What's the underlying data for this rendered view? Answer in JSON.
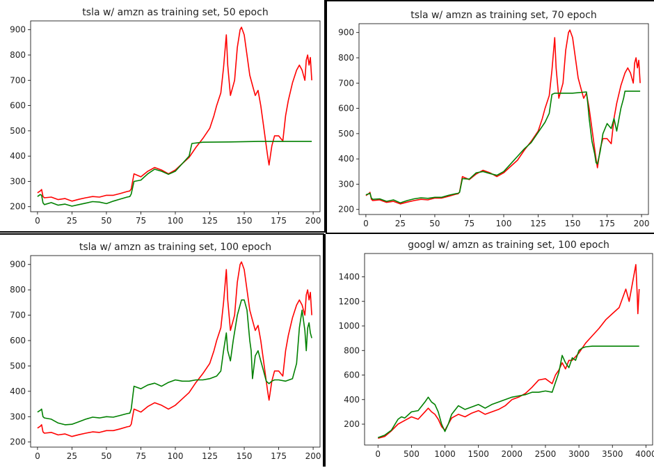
{
  "figure": {
    "panels_count": 4
  },
  "chart_data": [
    {
      "type": "line",
      "title": "tsla w/ amzn as training set, 50 epoch",
      "xlim": [
        -5,
        205
      ],
      "ylim": [
        180,
        935
      ],
      "xticks": [
        0,
        25,
        50,
        75,
        100,
        125,
        150,
        175,
        200
      ],
      "yticks": [
        200,
        300,
        400,
        500,
        600,
        700,
        800,
        900
      ],
      "series": [
        {
          "color": "#ff0000",
          "x": [
            0,
            2,
            3,
            4,
            5,
            10,
            15,
            20,
            25,
            30,
            35,
            40,
            45,
            50,
            55,
            60,
            65,
            67,
            68,
            70,
            75,
            80,
            85,
            90,
            95,
            100,
            105,
            110,
            115,
            120,
            125,
            128,
            130,
            133,
            135,
            137,
            138,
            140,
            143,
            145,
            147,
            148,
            150,
            152,
            154,
            156,
            158,
            160,
            162,
            164,
            166,
            167,
            168,
            170,
            172,
            175,
            178,
            180,
            182,
            185,
            188,
            190,
            192,
            194,
            195,
            196,
            197,
            198,
            199
          ],
          "y": [
            255,
            262,
            268,
            240,
            235,
            238,
            228,
            232,
            222,
            229,
            235,
            240,
            238,
            245,
            245,
            252,
            260,
            262,
            270,
            330,
            318,
            340,
            355,
            345,
            330,
            345,
            370,
            395,
            435,
            470,
            510,
            560,
            600,
            650,
            750,
            880,
            760,
            640,
            700,
            830,
            900,
            910,
            880,
            800,
            720,
            680,
            640,
            660,
            600,
            520,
            440,
            400,
            365,
            440,
            480,
            480,
            460,
            560,
            620,
            690,
            740,
            760,
            740,
            700,
            780,
            800,
            760,
            790,
            700
          ]
        },
        {
          "color": "#008000",
          "x": [
            0,
            2,
            3,
            4,
            5,
            10,
            15,
            20,
            25,
            30,
            35,
            40,
            45,
            50,
            55,
            60,
            65,
            67,
            68,
            70,
            75,
            80,
            85,
            90,
            95,
            100,
            105,
            110,
            112,
            120,
            140,
            160,
            180,
            199
          ],
          "y": [
            240,
            248,
            245,
            215,
            208,
            216,
            206,
            210,
            202,
            208,
            214,
            220,
            218,
            212,
            222,
            230,
            238,
            240,
            250,
            300,
            305,
            330,
            348,
            340,
            328,
            340,
            370,
            400,
            450,
            455,
            456,
            458,
            458,
            458
          ]
        }
      ]
    },
    {
      "type": "line",
      "title": "tsla w/ amzn as training set, 70 epoch",
      "xlim": [
        -5,
        205
      ],
      "ylim": [
        180,
        935
      ],
      "xticks": [
        0,
        25,
        50,
        75,
        100,
        125,
        150,
        175,
        200
      ],
      "yticks": [
        200,
        300,
        400,
        500,
        600,
        700,
        800,
        900
      ],
      "series": [
        {
          "color": "#ff0000",
          "x": [
            0,
            2,
            3,
            4,
            5,
            10,
            15,
            20,
            25,
            30,
            35,
            40,
            45,
            50,
            55,
            60,
            65,
            67,
            68,
            70,
            75,
            80,
            85,
            90,
            95,
            100,
            105,
            110,
            115,
            120,
            125,
            128,
            130,
            133,
            135,
            137,
            138,
            140,
            143,
            145,
            147,
            148,
            150,
            152,
            154,
            156,
            158,
            160,
            162,
            164,
            166,
            167,
            168,
            170,
            172,
            175,
            178,
            180,
            182,
            185,
            188,
            190,
            192,
            194,
            195,
            196,
            197,
            198,
            199
          ],
          "y": [
            255,
            262,
            268,
            240,
            235,
            238,
            228,
            232,
            222,
            229,
            235,
            240,
            238,
            245,
            245,
            252,
            260,
            262,
            270,
            330,
            318,
            340,
            355,
            345,
            330,
            345,
            370,
            395,
            435,
            470,
            510,
            560,
            600,
            650,
            750,
            880,
            760,
            640,
            700,
            830,
            900,
            910,
            880,
            800,
            720,
            680,
            640,
            660,
            600,
            520,
            440,
            400,
            365,
            440,
            480,
            480,
            460,
            560,
            620,
            690,
            740,
            760,
            740,
            700,
            780,
            800,
            760,
            790,
            700
          ]
        },
        {
          "color": "#008000",
          "x": [
            0,
            2,
            3,
            4,
            5,
            10,
            15,
            20,
            25,
            30,
            35,
            40,
            45,
            50,
            55,
            60,
            65,
            67,
            68,
            70,
            75,
            80,
            85,
            90,
            95,
            100,
            105,
            110,
            115,
            120,
            125,
            130,
            133,
            135,
            137,
            140,
            150,
            160,
            161,
            162,
            164,
            166,
            167,
            168,
            170,
            172,
            175,
            178,
            180,
            182,
            185,
            187,
            188,
            199
          ],
          "y": [
            258,
            262,
            264,
            245,
            240,
            242,
            232,
            238,
            226,
            235,
            242,
            246,
            244,
            248,
            248,
            256,
            262,
            264,
            268,
            322,
            320,
            345,
            350,
            342,
            335,
            350,
            380,
            410,
            440,
            465,
            505,
            545,
            580,
            655,
            660,
            660,
            660,
            665,
            620,
            560,
            470,
            420,
            385,
            380,
            430,
            500,
            540,
            520,
            560,
            510,
            600,
            640,
            668,
            668
          ]
        }
      ]
    },
    {
      "type": "line",
      "title": "tsla w/ amzn as training set, 100 epoch",
      "xlim": [
        -5,
        205
      ],
      "ylim": [
        180,
        935
      ],
      "xticks": [
        0,
        25,
        50,
        75,
        100,
        125,
        150,
        175,
        200
      ],
      "yticks": [
        200,
        300,
        400,
        500,
        600,
        700,
        800,
        900
      ],
      "series": [
        {
          "color": "#ff0000",
          "x": [
            0,
            2,
            3,
            4,
            5,
            10,
            15,
            20,
            25,
            30,
            35,
            40,
            45,
            50,
            55,
            60,
            65,
            67,
            68,
            70,
            75,
            80,
            85,
            90,
            95,
            100,
            105,
            110,
            115,
            120,
            125,
            128,
            130,
            133,
            135,
            137,
            138,
            140,
            143,
            145,
            147,
            148,
            150,
            152,
            154,
            156,
            158,
            160,
            162,
            164,
            166,
            167,
            168,
            170,
            172,
            175,
            178,
            180,
            182,
            185,
            188,
            190,
            192,
            194,
            195,
            196,
            197,
            198,
            199
          ],
          "y": [
            255,
            262,
            268,
            240,
            235,
            238,
            228,
            232,
            222,
            229,
            235,
            240,
            238,
            245,
            245,
            252,
            260,
            262,
            270,
            330,
            318,
            340,
            355,
            345,
            330,
            345,
            370,
            395,
            435,
            470,
            510,
            560,
            600,
            650,
            750,
            880,
            760,
            640,
            700,
            830,
            900,
            910,
            880,
            800,
            720,
            680,
            640,
            660,
            600,
            520,
            440,
            400,
            365,
            440,
            480,
            480,
            460,
            560,
            620,
            690,
            740,
            760,
            740,
            700,
            780,
            800,
            760,
            790,
            700
          ]
        },
        {
          "color": "#008000",
          "x": [
            0,
            2,
            3,
            4,
            5,
            10,
            15,
            20,
            25,
            30,
            35,
            40,
            45,
            50,
            55,
            60,
            65,
            67,
            68,
            70,
            75,
            80,
            85,
            90,
            95,
            100,
            105,
            110,
            115,
            120,
            125,
            130,
            133,
            135,
            137,
            138,
            140,
            142,
            145,
            148,
            150,
            152,
            154,
            155,
            156,
            158,
            160,
            162,
            164,
            166,
            168,
            170,
            172,
            175,
            180,
            185,
            188,
            190,
            192,
            194,
            195,
            196,
            197,
            198,
            199
          ],
          "y": [
            318,
            325,
            330,
            300,
            295,
            290,
            275,
            268,
            270,
            280,
            290,
            298,
            295,
            300,
            298,
            305,
            312,
            314,
            330,
            420,
            410,
            425,
            432,
            420,
            435,
            445,
            440,
            440,
            445,
            445,
            450,
            460,
            480,
            560,
            630,
            560,
            520,
            600,
            700,
            760,
            760,
            720,
            600,
            560,
            450,
            540,
            560,
            520,
            480,
            440,
            430,
            440,
            445,
            445,
            440,
            450,
            510,
            650,
            720,
            640,
            560,
            650,
            670,
            630,
            610
          ]
        }
      ]
    },
    {
      "type": "line",
      "title": "googl w/ amzn as training set, 100 epoch",
      "xlim": [
        -200,
        4100
      ],
      "ylim": [
        30,
        1590
      ],
      "xticks": [
        0,
        500,
        1000,
        1500,
        2000,
        2500,
        3000,
        3500,
        4000
      ],
      "yticks": [
        200,
        400,
        600,
        800,
        1000,
        1200,
        1400
      ],
      "series": [
        {
          "color": "#ff0000",
          "x": [
            0,
            100,
            200,
            300,
            400,
            500,
            600,
            700,
            750,
            800,
            850,
            900,
            950,
            1000,
            1050,
            1100,
            1200,
            1300,
            1400,
            1500,
            1600,
            1700,
            1800,
            1900,
            2000,
            2100,
            2200,
            2300,
            2400,
            2500,
            2600,
            2650,
            2700,
            2750,
            2800,
            2850,
            2900,
            3000,
            3100,
            3200,
            3300,
            3400,
            3500,
            3600,
            3700,
            3750,
            3800,
            3850,
            3870,
            3880,
            3900
          ],
          "y": [
            85,
            100,
            145,
            200,
            230,
            260,
            240,
            300,
            330,
            300,
            280,
            240,
            180,
            150,
            200,
            250,
            280,
            260,
            290,
            310,
            280,
            300,
            320,
            350,
            400,
            420,
            450,
            500,
            560,
            570,
            530,
            600,
            640,
            700,
            650,
            720,
            720,
            780,
            860,
            920,
            980,
            1050,
            1100,
            1150,
            1300,
            1200,
            1350,
            1500,
            1250,
            1100,
            1300
          ]
        },
        {
          "color": "#008000",
          "x": [
            0,
            100,
            200,
            300,
            350,
            400,
            500,
            600,
            700,
            750,
            800,
            850,
            900,
            950,
            1000,
            1050,
            1100,
            1200,
            1300,
            1400,
            1500,
            1600,
            1700,
            1800,
            1900,
            2000,
            2100,
            2200,
            2300,
            2400,
            2500,
            2600,
            2650,
            2700,
            2750,
            2800,
            2850,
            2900,
            2950,
            3000,
            3050,
            3100,
            3200,
            3500,
            3900
          ],
          "y": [
            90,
            110,
            150,
            240,
            260,
            250,
            300,
            310,
            380,
            420,
            380,
            360,
            300,
            200,
            140,
            200,
            280,
            350,
            320,
            340,
            360,
            330,
            360,
            380,
            400,
            420,
            430,
            440,
            460,
            460,
            470,
            460,
            540,
            620,
            760,
            700,
            660,
            740,
            720,
            800,
            820,
            830,
            835,
            835,
            835
          ]
        }
      ]
    }
  ]
}
